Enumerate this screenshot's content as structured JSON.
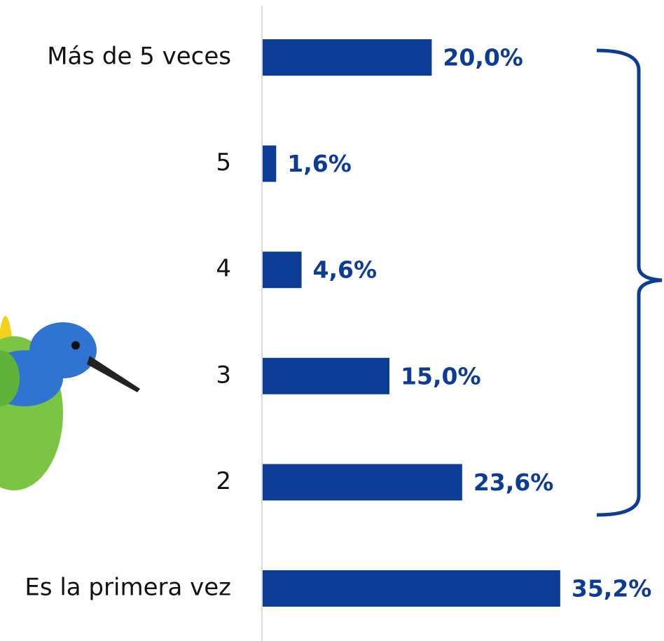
{
  "chart_data": {
    "type": "bar",
    "orientation": "horizontal",
    "categories": [
      "Más de 5 veces",
      "5",
      "4",
      "3",
      "2",
      "Es la primera vez"
    ],
    "values": [
      20.0,
      1.6,
      4.6,
      15.0,
      23.6,
      35.2
    ],
    "value_labels": [
      "20,0%",
      "1,6%",
      "4,6%",
      "15,0%",
      "23,6%",
      "35,2%"
    ],
    "color": "#0d3c96"
  }
}
